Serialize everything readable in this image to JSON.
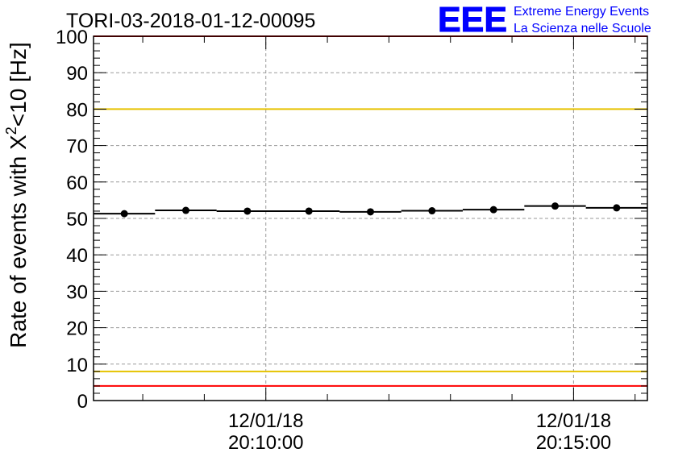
{
  "chart_data": {
    "type": "scatter",
    "title": "TORI-03-2018-01-12-00095",
    "ylabel": "Rate of events with X²<10 [Hz]",
    "ylabel_parts": {
      "main": "Rate of events with X",
      "sup": "2",
      "rest": "<10 [Hz]"
    },
    "ylim": [
      0,
      100
    ],
    "yticks": [
      0,
      10,
      20,
      30,
      40,
      50,
      60,
      70,
      80,
      90,
      100
    ],
    "ytick_labels": [
      "0",
      "10",
      "20",
      "30",
      "40",
      "50",
      "60",
      "70",
      "80",
      "90",
      "100"
    ],
    "xlim": [
      "20:07:12",
      "20:16:12"
    ],
    "xticks": [
      {
        "time": "20:10:00",
        "label_date": "12/01/18",
        "label_time": "20:10:00"
      },
      {
        "time": "20:15:00",
        "label_date": "12/01/18",
        "label_time": "20:15:00"
      }
    ],
    "series": [
      {
        "x": [
          "20:07:42",
          "20:08:42",
          "20:09:42",
          "20:10:42",
          "20:11:42",
          "20:12:42",
          "20:13:42",
          "20:14:42",
          "20:15:42"
        ],
        "y": [
          51.3,
          52.2,
          52.0,
          52.0,
          51.8,
          52.1,
          52.4,
          53.4,
          52.9
        ],
        "bin_width_seconds": 60,
        "color": "#000000"
      }
    ],
    "reference_lines": [
      {
        "y": 100,
        "color": "#ff0000"
      },
      {
        "y": 80,
        "color": "#e6c200"
      },
      {
        "y": 8,
        "color": "#e6c200"
      },
      {
        "y": 4,
        "color": "#ff0000"
      }
    ],
    "grid": true
  },
  "logo": {
    "mark": "EEE",
    "line1": "Extreme Energy Events",
    "line2": "La Scienza nelle Scuole",
    "color": "#0000ff"
  }
}
